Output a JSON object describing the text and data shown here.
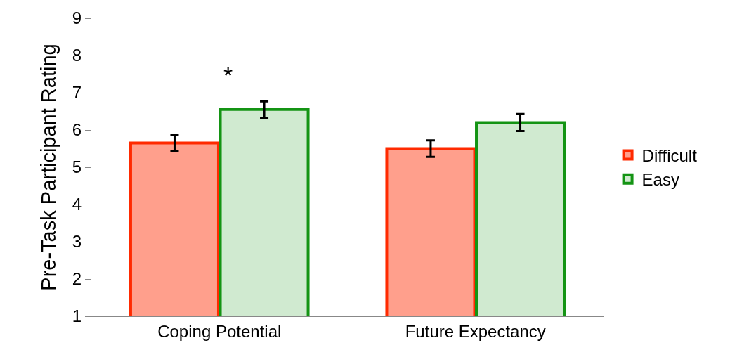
{
  "chart_data": {
    "type": "bar",
    "ylabel": "Pre-Task Participant Rating",
    "categories": [
      "Coping Potential",
      "Future Expectancy"
    ],
    "series": [
      {
        "name": "Difficult",
        "color": "#ff2a00",
        "values": [
          5.65,
          5.5
        ],
        "errors": [
          0.22,
          0.22
        ]
      },
      {
        "name": "Easy",
        "color": "#149414",
        "values": [
          6.55,
          6.2
        ],
        "errors": [
          0.22,
          0.23
        ]
      }
    ],
    "ylim": [
      1,
      9
    ],
    "yticks": [
      1,
      2,
      3,
      4,
      5,
      6,
      7,
      8,
      9
    ],
    "grid": false,
    "legend": "right",
    "annotations": [
      "*"
    ]
  }
}
